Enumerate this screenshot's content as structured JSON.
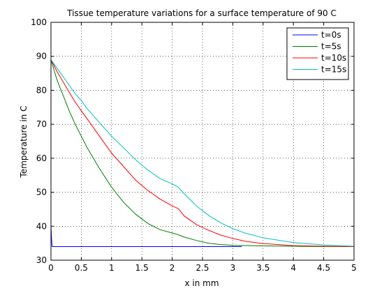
{
  "chart_data": {
    "type": "line",
    "title": "Tissue temperature variations for a surface temperature of 90 C",
    "xlabel": "x in mm",
    "ylabel": "Temperature in C",
    "xlim": [
      0,
      5
    ],
    "ylim": [
      30,
      100
    ],
    "xticks": [
      0,
      0.5,
      1,
      1.5,
      2,
      2.5,
      3,
      3.5,
      4,
      4.5,
      5
    ],
    "xtick_labels": [
      "0",
      "0.5",
      "1",
      "1.5",
      "2",
      "2.5",
      "3",
      "3.5",
      "4",
      "4.5",
      "5"
    ],
    "yticks": [
      30,
      40,
      50,
      60,
      70,
      80,
      90,
      100
    ],
    "ytick_labels": [
      "30",
      "40",
      "50",
      "60",
      "70",
      "80",
      "90",
      "100"
    ],
    "grid": true,
    "legend_position": "top-right",
    "series": [
      {
        "name": "t=0s",
        "color": "#0000ff",
        "x": [
          0,
          0.01,
          0.02,
          0.03,
          0.05,
          0.5,
          1,
          1.5,
          2,
          2.5,
          3,
          3.15
        ],
        "y": [
          40,
          36,
          34,
          34,
          34,
          34,
          34,
          34,
          34,
          34,
          34,
          34
        ]
      },
      {
        "name": "t=5s",
        "color": "#007f00",
        "x": [
          0,
          0.1,
          0.2,
          0.3,
          0.4,
          0.5,
          0.6,
          0.8,
          1.0,
          1.2,
          1.4,
          1.6,
          1.8,
          2.0,
          2.1,
          2.2,
          2.4,
          2.6,
          2.8,
          3.0,
          3.5,
          4.0,
          4.5,
          5.0
        ],
        "y": [
          89,
          83,
          78.5,
          74,
          70,
          66.5,
          63,
          57,
          51.5,
          47,
          43.5,
          40.8,
          39,
          38,
          37.5,
          36.8,
          35.8,
          35,
          34.6,
          34.4,
          34.2,
          34.1,
          34,
          34
        ]
      },
      {
        "name": "t=10s",
        "color": "#ff0000",
        "x": [
          0,
          0.1,
          0.2,
          0.3,
          0.4,
          0.5,
          0.6,
          0.8,
          1.0,
          1.2,
          1.4,
          1.6,
          1.8,
          2.0,
          2.1,
          2.2,
          2.4,
          2.6,
          2.8,
          3.0,
          3.2,
          3.5,
          4.0,
          4.5,
          5.0
        ],
        "y": [
          89,
          85.5,
          82.5,
          79.5,
          76.5,
          74,
          71.5,
          66.5,
          61.5,
          57.5,
          53.5,
          50.5,
          48,
          46,
          45.2,
          43,
          40.5,
          38.8,
          37.4,
          36.4,
          35.6,
          34.9,
          34.3,
          34.1,
          34
        ]
      },
      {
        "name": "t=15s",
        "color": "#00bfbf",
        "x": [
          0,
          0.1,
          0.2,
          0.3,
          0.4,
          0.5,
          0.6,
          0.8,
          1.0,
          1.2,
          1.4,
          1.6,
          1.8,
          2.0,
          2.1,
          2.2,
          2.4,
          2.6,
          2.8,
          3.0,
          3.2,
          3.5,
          4.0,
          4.5,
          5.0
        ],
        "y": [
          89,
          86.5,
          84,
          81.5,
          79,
          77,
          74.5,
          70.5,
          66.5,
          63,
          59.5,
          56.5,
          54,
          52.5,
          51.5,
          49.5,
          46,
          43.2,
          41,
          39.3,
          38,
          36.6,
          35.2,
          34.5,
          34.1
        ]
      }
    ]
  }
}
